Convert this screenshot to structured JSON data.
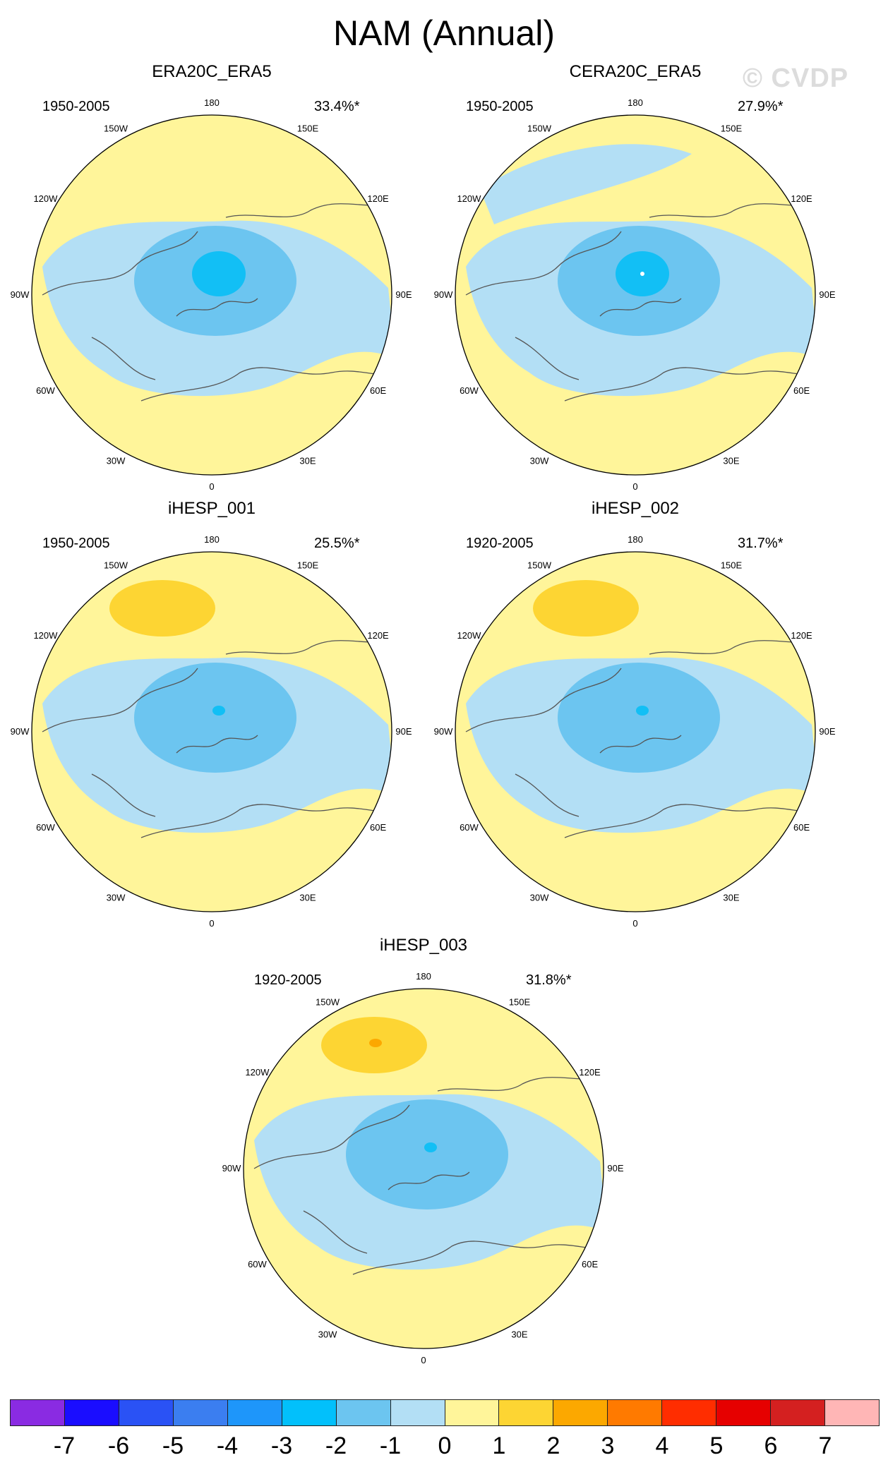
{
  "title": "NAM (Annual)",
  "watermark": "© CVDP",
  "colors": {
    "ocean_pos": "#fff59a",
    "l_neg1": "#b3dff5",
    "l_neg2": "#6cc5f0",
    "l_neg3": "#12bff5",
    "l_pos1": "#fdd533",
    "l_pos2": "#fca800",
    "coast": "#555555",
    "white": "#ffffff"
  },
  "lon_labels": [
    "180",
    "150E",
    "120E",
    "90E",
    "60E",
    "30E",
    "0",
    "30W",
    "60W",
    "90W",
    "120W",
    "150W"
  ],
  "panels": [
    {
      "name": "ERA20C_ERA5",
      "years": "1950-2005",
      "pct": "33.4%*",
      "pos_center": false,
      "pos_max": 0,
      "neg_max": 3
    },
    {
      "name": "CERA20C_ERA5",
      "years": "1950-2005",
      "pct": "27.9%*",
      "pos_center": false,
      "pos_max": 0,
      "neg_max": 3
    },
    {
      "name": "iHESP_001",
      "years": "1950-2005",
      "pct": "25.5%*",
      "pos_center": true,
      "pos_max": 1,
      "neg_max": 3
    },
    {
      "name": "iHESP_002",
      "years": "1920-2005",
      "pct": "31.7%*",
      "pos_center": true,
      "pos_max": 1,
      "neg_max": 3
    },
    {
      "name": "iHESP_003",
      "years": "1920-2005",
      "pct": "31.8%*",
      "pos_center": true,
      "pos_max": 2,
      "neg_max": 3
    }
  ],
  "colorbar": {
    "colors": [
      "#8a2be2",
      "#1a0dff",
      "#2a52f5",
      "#3b7ef0",
      "#1e96fa",
      "#02c0fb",
      "#6cc5f0",
      "#b3dff5",
      "#fff59a",
      "#fdd533",
      "#fca800",
      "#ff7a00",
      "#ff2d00",
      "#e60000",
      "#d42020",
      "#ffb6b6"
    ],
    "labels": [
      "-7",
      "-6",
      "-5",
      "-4",
      "-3",
      "-2",
      "-1",
      "0",
      "1",
      "2",
      "3",
      "4",
      "5",
      "6",
      "7"
    ]
  }
}
